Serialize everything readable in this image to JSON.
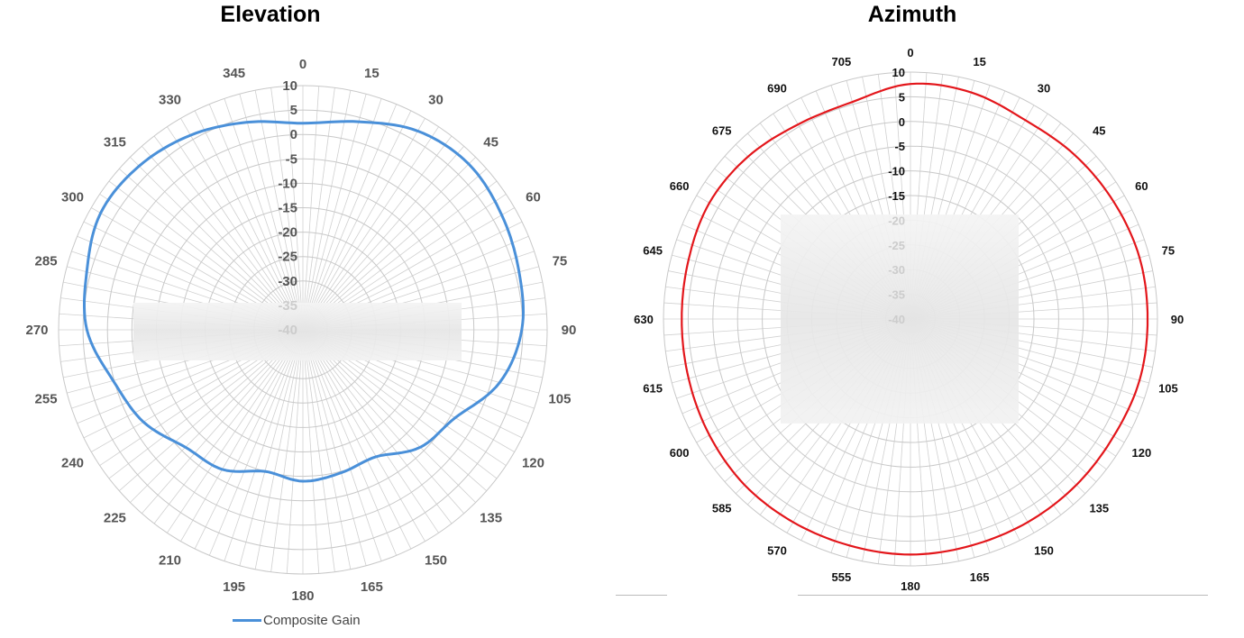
{
  "chart_data": [
    {
      "type": "polar",
      "title": "Elevation",
      "angular_ticks": [
        0,
        15,
        30,
        45,
        60,
        75,
        90,
        105,
        120,
        135,
        150,
        165,
        180,
        195,
        210,
        225,
        240,
        255,
        270,
        285,
        300,
        315,
        330,
        345
      ],
      "radial_ticks": [
        10,
        5,
        0,
        -5,
        -10,
        -15,
        -20,
        -25,
        -30,
        -35,
        -40
      ],
      "rlim": [
        -40,
        10
      ],
      "grid": true,
      "legend": "bottom",
      "series": [
        {
          "name": "Composite Gain",
          "color": "#4a90d9",
          "theta": [
            0,
            15,
            30,
            45,
            60,
            75,
            90,
            105,
            120,
            135,
            150,
            165,
            180,
            195,
            210,
            225,
            240,
            255,
            270,
            285,
            300,
            315,
            330,
            345
          ],
          "values": [
            2.3,
            4.1,
            7,
            8,
            7,
            5.8,
            4.8,
            1.7,
            -4,
            -6,
            -10,
            -9.7,
            -9,
            -10,
            -7,
            -6,
            -2.3,
            0.2,
            4.2,
            5.8,
            7.8,
            7.4,
            6,
            4
          ]
        }
      ]
    },
    {
      "type": "polar",
      "title": "Azimuth",
      "angular_ticks": [
        0,
        15,
        30,
        45,
        60,
        75,
        90,
        105,
        120,
        135,
        150,
        165,
        180,
        555,
        570,
        585,
        600,
        615,
        630,
        645,
        660,
        675,
        690,
        705
      ],
      "radial_ticks": [
        10,
        5,
        0,
        -5,
        -10,
        -15,
        -20,
        -25,
        -30,
        -35,
        -40
      ],
      "rlim": [
        -40,
        10
      ],
      "grid": true,
      "series": [
        {
          "color": "#e3161b",
          "theta": [
            0,
            15,
            30,
            45,
            60,
            75,
            90,
            105,
            120,
            135,
            150,
            165,
            180,
            555,
            570,
            585,
            600,
            615,
            630,
            645,
            660,
            675,
            690,
            705
          ],
          "values": [
            7.6,
            7.5,
            6.5,
            7,
            7.5,
            8,
            8,
            8,
            7.5,
            7.5,
            7.5,
            7.5,
            7.7,
            7.5,
            7.5,
            7.5,
            7,
            6.5,
            6.3,
            6.5,
            7,
            6.5,
            5.5,
            5.5
          ]
        }
      ]
    }
  ]
}
